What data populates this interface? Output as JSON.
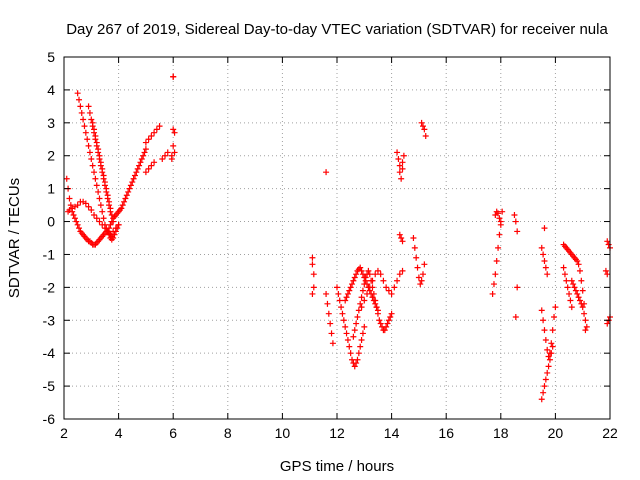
{
  "chart_data": {
    "type": "scatter",
    "title": "Day 267 of 2019, Sidereal Day-to-day VTEC variation (SDTVAR) for receiver nula",
    "xlabel": "GPS time / hours",
    "ylabel": "SDTVAR / TECUs",
    "xlim": [
      2,
      22
    ],
    "ylim": [
      -6,
      5
    ],
    "xticks": [
      2,
      4,
      6,
      8,
      10,
      12,
      14,
      16,
      18,
      20,
      22
    ],
    "yticks": [
      -6,
      -5,
      -4,
      -3,
      -2,
      -1,
      0,
      1,
      2,
      3,
      4,
      5
    ],
    "grid": true,
    "marker": "+",
    "color": "#ff0000",
    "series": [
      {
        "x": [
          2.1,
          2.15,
          2.2,
          2.25,
          2.3,
          2.35,
          2.4,
          2.45,
          2.5,
          2.55,
          2.6,
          2.65,
          2.7,
          2.75,
          2.8,
          2.85,
          2.9,
          2.95,
          3.0,
          3.05,
          3.1,
          3.15,
          3.2,
          3.25,
          3.3,
          3.35,
          3.4,
          3.45,
          3.5,
          3.55,
          3.6,
          3.65,
          3.7,
          3.75,
          3.8,
          3.85,
          3.9,
          3.95,
          4.0,
          2.15,
          2.2,
          2.3,
          2.4,
          2.5,
          2.6,
          2.7,
          2.8,
          2.9,
          3.0,
          3.1,
          3.2,
          3.3,
          3.4,
          3.5,
          3.6,
          3.7,
          3.8,
          3.9,
          4.0,
          2.5,
          2.55,
          2.6,
          2.65,
          2.7,
          2.75,
          2.8,
          2.85,
          2.9,
          2.95,
          3.0,
          3.05,
          3.1,
          3.15,
          3.2,
          3.25,
          3.3,
          3.35,
          3.4,
          3.45,
          3.5,
          3.55,
          3.6,
          3.65,
          3.7,
          3.75,
          2.9,
          2.95,
          3.0,
          3.05,
          3.1,
          3.15,
          3.2,
          3.25,
          3.3,
          3.35,
          3.4,
          3.45,
          3.5,
          3.55,
          3.6,
          3.65,
          3.7,
          3.05,
          3.1,
          3.15,
          3.2,
          3.25,
          3.3,
          3.35,
          3.4,
          3.45,
          3.5,
          3.55,
          3.6,
          3.65,
          3.7,
          3.75,
          3.8,
          3.6,
          3.65,
          3.7,
          3.75,
          3.8,
          3.85,
          3.9,
          3.95,
          4.0,
          4.05,
          4.1,
          4.15,
          4.2,
          4.25,
          4.3,
          4.35,
          4.4,
          4.45,
          4.5,
          4.55,
          4.6,
          4.65,
          4.7,
          4.75,
          4.8,
          4.85,
          4.9,
          4.95,
          5.0,
          5.0,
          5.1,
          5.2,
          5.3,
          5.4,
          5.5,
          5.6,
          5.7,
          5.8,
          5.0,
          5.1,
          5.2,
          5.3,
          6.0,
          6.0,
          6.0,
          6.05,
          6.05,
          5.95,
          5.95,
          6.0,
          11.1,
          11.1,
          11.15,
          11.15,
          11.1,
          11.6,
          12.0,
          12.05,
          12.1,
          12.15,
          12.2,
          12.25,
          12.3,
          12.35,
          12.4,
          12.45,
          12.5,
          12.55,
          12.6,
          12.65,
          12.7,
          12.75,
          12.8,
          12.85,
          12.9,
          12.95,
          13.0,
          12.3,
          12.35,
          12.4,
          12.45,
          12.5,
          12.55,
          12.6,
          12.65,
          12.7,
          12.75,
          12.8,
          12.85,
          12.9,
          12.95,
          13.0,
          13.05,
          13.1,
          13.15,
          13.2,
          13.25,
          13.3,
          13.35,
          13.4,
          13.45,
          13.5,
          11.6,
          11.65,
          11.7,
          11.75,
          11.8,
          11.85,
          12.6,
          12.65,
          12.7,
          12.75,
          12.8,
          12.85,
          12.9,
          12.95,
          13.0,
          13.05,
          13.1,
          13.15,
          13.2,
          13.25,
          13.3,
          13.35,
          13.4,
          13.45,
          13.5,
          13.55,
          13.6,
          13.65,
          13.7,
          13.75,
          13.8,
          13.85,
          13.9,
          13.95,
          14.0,
          12.9,
          13.0,
          13.1,
          13.2,
          13.3,
          13.4,
          13.5,
          13.6,
          13.7,
          13.8,
          13.9,
          14.0,
          14.1,
          14.2,
          14.3,
          14.4,
          14.2,
          14.25,
          14.3,
          14.3,
          14.35,
          14.4,
          14.4,
          14.45,
          14.3,
          14.35,
          14.4,
          14.8,
          14.85,
          14.9,
          14.95,
          15.0,
          15.05,
          15.1,
          15.15,
          15.2,
          15.1,
          15.15,
          15.2,
          15.25,
          17.7,
          17.75,
          17.8,
          17.85,
          17.9,
          17.95,
          18.0,
          18.05,
          17.8,
          17.85,
          17.9,
          17.95,
          18.0,
          18.5,
          18.55,
          18.6,
          18.6,
          18.55,
          19.5,
          19.55,
          19.6,
          19.65,
          19.7,
          19.75,
          19.8,
          19.85,
          19.9,
          19.95,
          20.0,
          19.5,
          19.55,
          19.6,
          19.65,
          19.7,
          19.75,
          19.8,
          19.85,
          19.9,
          19.5,
          19.55,
          19.6,
          19.65,
          19.7,
          19.6,
          20.3,
          20.35,
          20.4,
          20.45,
          20.5,
          20.55,
          20.6,
          20.65,
          20.7,
          20.75,
          20.8,
          20.85,
          20.9,
          20.95,
          21.0,
          21.05,
          21.1,
          20.6,
          20.65,
          20.7,
          20.75,
          20.8,
          20.85,
          20.9,
          20.95,
          21.0,
          21.05,
          21.1,
          21.15,
          20.3,
          20.35,
          20.4,
          20.45,
          20.5,
          20.55,
          20.6,
          21.9,
          21.95,
          22.0,
          21.85,
          21.9,
          21.95,
          22.0,
          21.9
        ],
        "y": [
          1.3,
          1.0,
          0.7,
          0.5,
          0.3,
          0.2,
          0.1,
          0.0,
          -0.1,
          -0.2,
          -0.3,
          -0.35,
          -0.4,
          -0.45,
          -0.5,
          -0.55,
          -0.6,
          -0.6,
          -0.65,
          -0.7,
          -0.7,
          -0.7,
          -0.65,
          -0.6,
          -0.55,
          -0.5,
          -0.45,
          -0.4,
          -0.35,
          -0.3,
          -0.3,
          -0.35,
          -0.4,
          -0.45,
          -0.5,
          -0.4,
          -0.3,
          -0.2,
          -0.1,
          0.3,
          0.35,
          0.4,
          0.45,
          0.5,
          0.6,
          0.6,
          0.55,
          0.45,
          0.35,
          0.2,
          0.1,
          0.0,
          -0.1,
          -0.2,
          -0.3,
          -0.4,
          -0.3,
          -0.2,
          -0.1,
          3.9,
          3.7,
          3.5,
          3.3,
          3.1,
          2.9,
          2.7,
          2.5,
          2.3,
          2.1,
          1.9,
          1.7,
          1.5,
          1.3,
          1.1,
          0.9,
          0.7,
          0.5,
          0.3,
          0.1,
          -0.1,
          -0.2,
          -0.3,
          -0.4,
          -0.5,
          -0.55,
          3.5,
          3.3,
          3.1,
          2.9,
          2.7,
          2.5,
          2.3,
          2.1,
          1.9,
          1.7,
          1.5,
          1.3,
          1.1,
          0.9,
          0.7,
          0.5,
          0.3,
          3.0,
          2.8,
          2.6,
          2.4,
          2.2,
          2.0,
          1.8,
          1.6,
          1.4,
          1.2,
          1.0,
          0.8,
          0.6,
          0.4,
          0.2,
          0.0,
          -0.3,
          -0.2,
          -0.1,
          0.0,
          0.1,
          0.15,
          0.2,
          0.25,
          0.3,
          0.35,
          0.4,
          0.5,
          0.6,
          0.7,
          0.8,
          0.9,
          1.0,
          1.1,
          1.2,
          1.3,
          1.4,
          1.5,
          1.6,
          1.7,
          1.8,
          1.9,
          2.0,
          2.1,
          2.2,
          2.4,
          2.5,
          2.6,
          2.7,
          2.8,
          2.9,
          1.9,
          2.0,
          2.1,
          1.5,
          1.6,
          1.7,
          1.8,
          4.4,
          4.4,
          2.8,
          2.7,
          2.1,
          2.0,
          1.9,
          2.3,
          -1.1,
          -1.3,
          -1.6,
          -2.0,
          -2.2,
          1.5,
          -2.0,
          -2.2,
          -2.4,
          -2.6,
          -2.8,
          -3.0,
          -3.2,
          -3.4,
          -3.6,
          -3.8,
          -4.0,
          -4.2,
          -4.3,
          -4.4,
          -4.3,
          -4.2,
          -4.0,
          -3.8,
          -3.6,
          -3.4,
          -3.2,
          -2.4,
          -2.3,
          -2.2,
          -2.1,
          -2.0,
          -1.9,
          -1.8,
          -1.7,
          -1.6,
          -1.5,
          -1.45,
          -1.4,
          -1.5,
          -1.6,
          -1.7,
          -1.8,
          -1.9,
          -2.0,
          -2.1,
          -2.2,
          -2.3,
          -2.4,
          -2.5,
          -2.6,
          -2.7,
          -2.2,
          -2.5,
          -2.8,
          -3.1,
          -3.4,
          -3.7,
          -3.5,
          -3.3,
          -3.1,
          -2.9,
          -2.7,
          -2.5,
          -2.3,
          -2.1,
          -1.9,
          -1.7,
          -1.6,
          -1.5,
          -1.6,
          -1.8,
          -2.0,
          -2.2,
          -2.4,
          -2.6,
          -2.8,
          -3.0,
          -3.1,
          -3.2,
          -3.3,
          -3.3,
          -3.2,
          -3.1,
          -3.0,
          -2.9,
          -2.8,
          -2.6,
          -2.4,
          -2.2,
          -2.0,
          -1.8,
          -1.6,
          -1.5,
          -1.6,
          -1.8,
          -2.0,
          -2.1,
          -2.2,
          -2.0,
          -1.8,
          -1.6,
          -1.5,
          2.1,
          1.9,
          1.7,
          1.5,
          1.3,
          1.6,
          1.8,
          2.0,
          -0.4,
          -0.5,
          -0.6,
          -0.5,
          -0.8,
          -1.1,
          -1.4,
          -1.7,
          -1.9,
          -1.8,
          -1.6,
          -1.3,
          3.0,
          2.9,
          2.8,
          2.6,
          -2.2,
          -1.9,
          -1.6,
          -1.2,
          -0.8,
          -0.4,
          0.0,
          0.3,
          0.2,
          0.3,
          0.25,
          0.1,
          -0.1,
          0.2,
          0.0,
          -0.3,
          -2.0,
          -2.9,
          -2.7,
          -3.0,
          -3.3,
          -3.6,
          -3.9,
          -4.1,
          -4.0,
          -3.7,
          -3.3,
          -2.9,
          -2.6,
          -5.4,
          -5.2,
          -5.0,
          -4.8,
          -4.6,
          -4.4,
          -4.2,
          -4.0,
          -3.8,
          -0.8,
          -1.0,
          -1.2,
          -1.4,
          -1.6,
          -0.2,
          -0.7,
          -0.75,
          -0.8,
          -0.85,
          -0.9,
          -0.95,
          -1.0,
          -1.05,
          -1.1,
          -1.15,
          -1.2,
          -1.3,
          -1.5,
          -1.8,
          -2.1,
          -2.5,
          -3.3,
          -1.8,
          -1.9,
          -2.0,
          -2.1,
          -2.2,
          -2.3,
          -2.4,
          -2.5,
          -2.6,
          -2.8,
          -3.0,
          -3.2,
          -1.4,
          -1.6,
          -1.8,
          -2.0,
          -2.2,
          -2.4,
          -2.6,
          -0.6,
          -0.7,
          -0.8,
          -1.5,
          -1.6,
          -3.0,
          -2.9,
          -3.1
        ]
      }
    ]
  }
}
